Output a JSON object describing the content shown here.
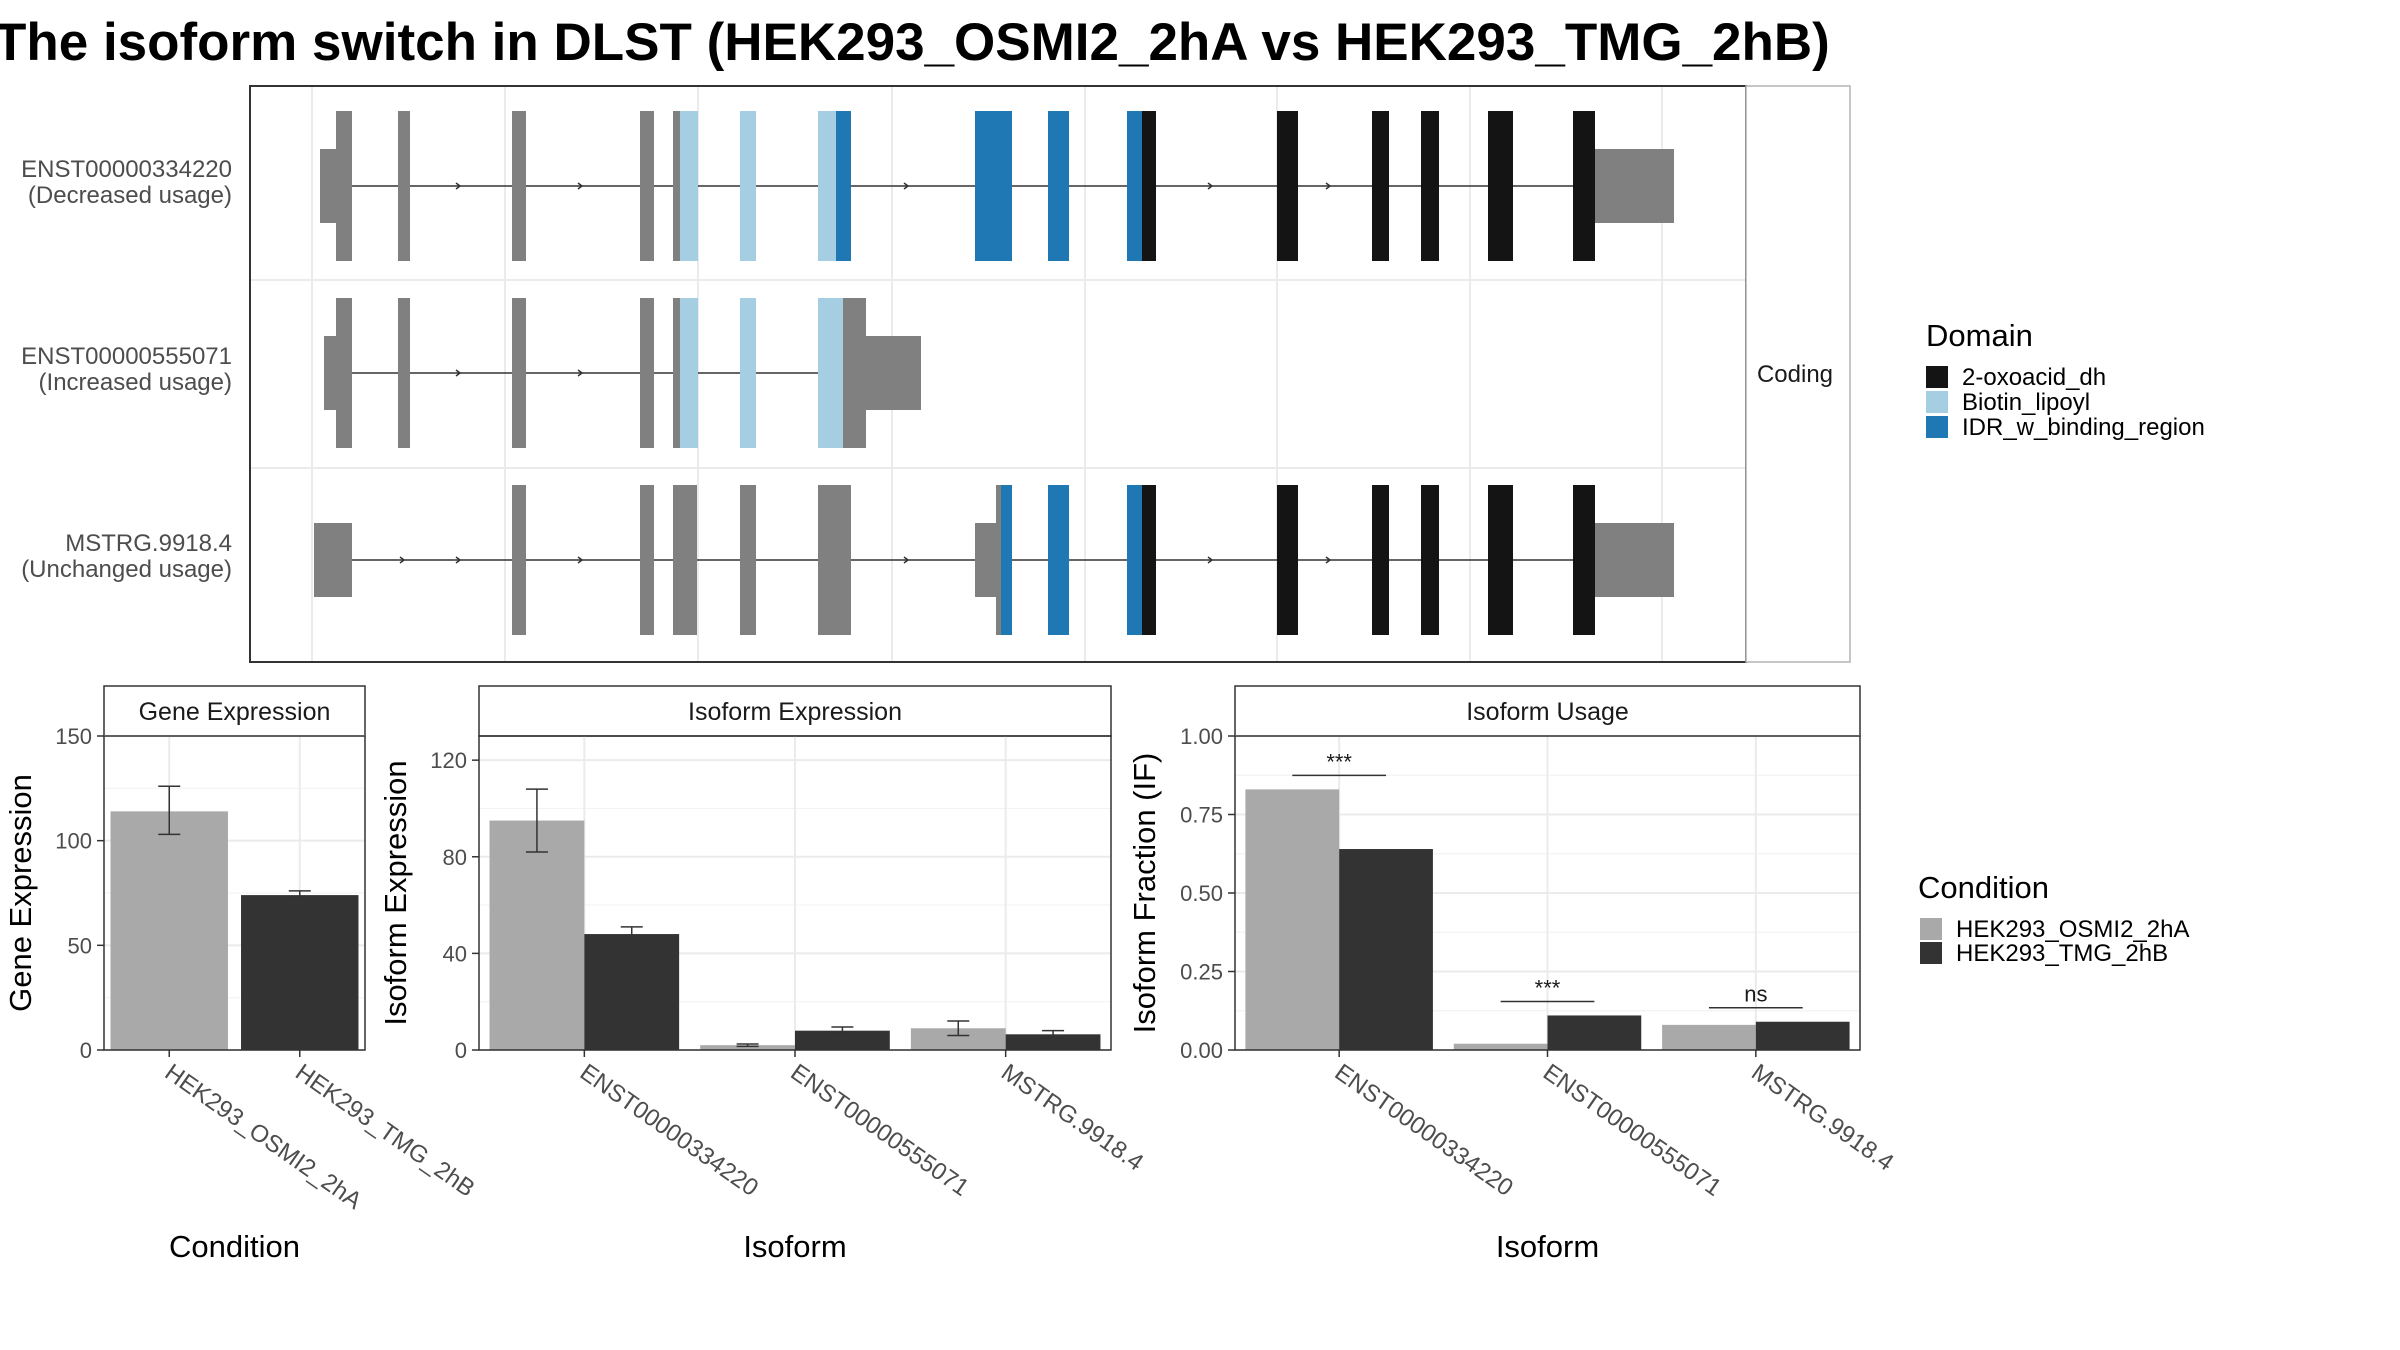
{
  "title": "The isoform switch in DLST (HEK293_OSMI2_2hA vs HEK293_TMG_2hB)",
  "colors": {
    "domain_2_oxoacid_dh": "#141414",
    "domain_biotin_lipoyl": "#a6cee3",
    "domain_idr_w_binding_region": "#1f78b4",
    "exon_no_domain": "#808080",
    "condition_a": "#a9a9a9",
    "condition_b": "#333333"
  },
  "chart_data": [
    {
      "type": "gene-structure",
      "panel_label": "Coding",
      "isoforms": [
        {
          "id": "ENST00000334220",
          "note": "(Decreased usage)",
          "domains": [
            "2-oxoacid_dh",
            "Biotin_lipoyl",
            "IDR_w_binding_region"
          ]
        },
        {
          "id": "ENST00000555071",
          "note": "(Increased usage)",
          "domains": [
            "Biotin_lipoyl"
          ]
        },
        {
          "id": "MSTRG.9918.4",
          "note": "(Unchanged usage)",
          "domains": [
            "2-oxoacid_dh",
            "IDR_w_binding_region"
          ]
        }
      ],
      "legend": {
        "title": "Domain",
        "entries": [
          "2-oxoacid_dh",
          "Biotin_lipoyl",
          "IDR_w_binding_region"
        ]
      }
    },
    {
      "type": "bar",
      "title": "Gene Expression",
      "xlabel": "Condition",
      "ylabel": "Gene Expression",
      "ylim": [
        0,
        150
      ],
      "yticks": [
        0,
        50,
        100,
        150
      ],
      "categories": [
        "HEK293_OSMI2_2hA",
        "HEK293_TMG_2hB"
      ],
      "values": [
        114,
        74
      ],
      "errors": [
        [
          103,
          126
        ],
        [
          73,
          76
        ]
      ]
    },
    {
      "type": "bar",
      "title": "Isoform Expression",
      "xlabel": "Isoform",
      "ylabel": "Isoform Expression",
      "ylim": [
        0,
        130
      ],
      "yticks": [
        0,
        40,
        80,
        120
      ],
      "categories": [
        "ENST00000334220",
        "ENST00000555071",
        "MSTRG.9918.4"
      ],
      "series": [
        {
          "name": "HEK293_OSMI2_2hA",
          "values": [
            95,
            2,
            9
          ],
          "errors": [
            [
              82,
              108
            ],
            [
              1.5,
              2.5
            ],
            [
              6,
              12
            ]
          ]
        },
        {
          "name": "HEK293_TMG_2hB",
          "values": [
            48,
            8,
            6.5
          ],
          "errors": [
            [
              45,
              51
            ],
            [
              7,
              9.5
            ],
            [
              5,
              8
            ]
          ]
        }
      ]
    },
    {
      "type": "bar",
      "title": "Isoform Usage",
      "xlabel": "Isoform",
      "ylabel": "Isoform Fraction (IF)",
      "ylim": [
        0,
        1
      ],
      "yticks": [
        "0.00",
        "0.25",
        "0.50",
        "0.75",
        "1.00"
      ],
      "categories": [
        "ENST00000334220",
        "ENST00000555071",
        "MSTRG.9918.4"
      ],
      "series": [
        {
          "name": "HEK293_OSMI2_2hA",
          "values": [
            0.83,
            0.02,
            0.08
          ]
        },
        {
          "name": "HEK293_TMG_2hB",
          "values": [
            0.64,
            0.11,
            0.09
          ]
        }
      ],
      "significance": [
        "***",
        "***",
        "ns"
      ]
    }
  ],
  "condition_legend": {
    "title": "Condition",
    "entries": [
      "HEK293_OSMI2_2hA",
      "HEK293_TMG_2hB"
    ]
  }
}
